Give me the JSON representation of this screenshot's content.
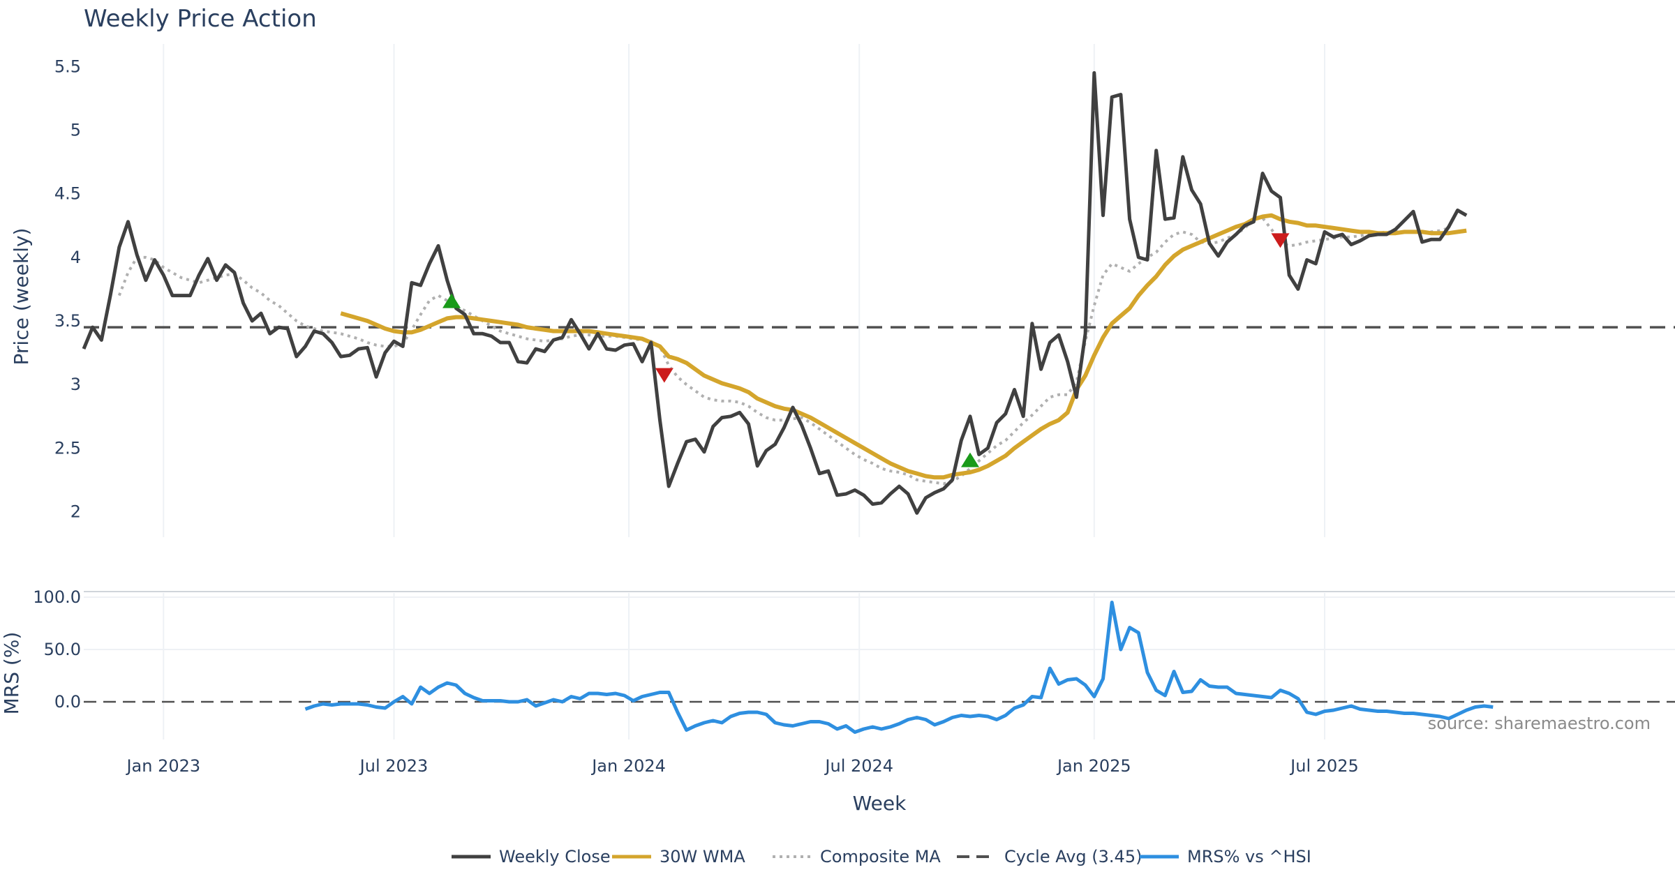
{
  "chart_data": {
    "type": "line",
    "title": "Weekly Price Action",
    "xlabel": "Week",
    "source": "source: sharemaestro.com",
    "x_ticks": [
      {
        "label": "Jan 2023",
        "week": 9
      },
      {
        "label": "Jul 2023",
        "week": 35
      },
      {
        "label": "Jan 2024",
        "week": 61.5
      },
      {
        "label": "Jul 2024",
        "week": 87.5
      },
      {
        "label": "Jan 2025",
        "week": 114
      },
      {
        "label": "Jul 2025",
        "week": 140
      }
    ],
    "price_panel": {
      "ylabel": "Price (weekly)",
      "ylim": [
        1.8,
        5.65
      ],
      "yticks": [
        2,
        2.5,
        3,
        3.5,
        4,
        4.5,
        5,
        5.5
      ],
      "ytick_labels": [
        "2",
        "2.5",
        "3",
        "3.5",
        "4",
        "4.5",
        "5",
        "5.5"
      ],
      "cycle_avg": 3.45,
      "series": [
        {
          "name": "Weekly Close",
          "color": "#404040",
          "start_week": 0,
          "values": [
            3.28,
            3.45,
            3.35,
            3.7,
            4.08,
            4.28,
            4.02,
            3.82,
            3.98,
            3.86,
            3.7,
            3.7,
            3.7,
            3.86,
            3.99,
            3.82,
            3.94,
            3.88,
            3.64,
            3.5,
            3.56,
            3.4,
            3.45,
            3.44,
            3.22,
            3.3,
            3.42,
            3.4,
            3.33,
            3.22,
            3.23,
            3.28,
            3.29,
            3.06,
            3.25,
            3.34,
            3.3,
            3.8,
            3.78,
            3.95,
            4.09,
            3.82,
            3.6,
            3.55,
            3.4,
            3.4,
            3.38,
            3.33,
            3.33,
            3.18,
            3.17,
            3.28,
            3.26,
            3.35,
            3.37,
            3.51,
            3.4,
            3.28,
            3.4,
            3.28,
            3.27,
            3.31,
            3.32,
            3.18,
            3.33,
            2.72,
            2.2,
            2.38,
            2.55,
            2.57,
            2.47,
            2.67,
            2.74,
            2.75,
            2.78,
            2.69,
            2.36,
            2.48,
            2.53,
            2.66,
            2.82,
            2.68,
            2.5,
            2.3,
            2.32,
            2.13,
            2.14,
            2.17,
            2.13,
            2.06,
            2.07,
            2.14,
            2.2,
            2.14,
            1.99,
            2.11,
            2.15,
            2.18,
            2.25,
            2.56,
            2.75,
            2.45,
            2.5,
            2.7,
            2.77,
            2.96,
            2.75,
            3.48,
            3.12,
            3.33,
            3.39,
            3.18,
            2.9,
            3.4,
            5.45,
            4.33,
            5.26,
            5.28,
            4.3,
            4.0,
            3.98,
            4.84,
            4.3,
            4.31,
            4.79,
            4.53,
            4.42,
            4.11,
            4.01,
            4.12,
            4.18,
            4.25,
            4.28,
            4.66,
            4.52,
            4.47,
            3.86,
            3.75,
            3.98,
            3.95,
            4.2,
            4.16,
            4.18,
            4.1,
            4.13,
            4.17,
            4.18,
            4.18,
            4.22,
            4.29,
            4.36,
            4.12,
            4.14,
            4.14,
            4.24,
            4.37,
            4.33
          ]
        },
        {
          "name": "30W WMA",
          "color": "#d4a52c",
          "start_week": 29,
          "values": [
            3.56,
            3.54,
            3.52,
            3.5,
            3.47,
            3.44,
            3.42,
            3.41,
            3.41,
            3.43,
            3.46,
            3.49,
            3.52,
            3.53,
            3.53,
            3.52,
            3.51,
            3.5,
            3.49,
            3.48,
            3.47,
            3.45,
            3.44,
            3.43,
            3.42,
            3.42,
            3.42,
            3.42,
            3.42,
            3.41,
            3.4,
            3.39,
            3.38,
            3.37,
            3.36,
            3.33,
            3.3,
            3.22,
            3.2,
            3.17,
            3.12,
            3.07,
            3.04,
            3.01,
            2.99,
            2.97,
            2.94,
            2.89,
            2.86,
            2.83,
            2.81,
            2.8,
            2.77,
            2.74,
            2.7,
            2.66,
            2.62,
            2.58,
            2.54,
            2.5,
            2.46,
            2.42,
            2.38,
            2.35,
            2.32,
            2.3,
            2.28,
            2.27,
            2.27,
            2.29,
            2.3,
            2.31,
            2.33,
            2.36,
            2.4,
            2.44,
            2.5,
            2.55,
            2.6,
            2.65,
            2.69,
            2.72,
            2.78,
            2.96,
            3.07,
            3.23,
            3.37,
            3.48,
            3.54,
            3.6,
            3.7,
            3.78,
            3.85,
            3.94,
            4.01,
            4.06,
            4.09,
            4.12,
            4.15,
            4.18,
            4.21,
            4.24,
            4.26,
            4.3,
            4.32,
            4.33,
            4.3,
            4.28,
            4.27,
            4.25,
            4.25,
            4.24,
            4.23,
            4.22,
            4.21,
            4.2,
            4.2,
            4.19,
            4.19,
            4.19,
            4.2,
            4.2,
            4.2,
            4.19,
            4.19,
            4.19,
            4.2,
            4.21
          ]
        },
        {
          "name": "Composite MA",
          "color": "#b0b0b0",
          "start_week": 4,
          "values": [
            3.7,
            3.88,
            4.0,
            4.0,
            3.98,
            3.92,
            3.88,
            3.84,
            3.82,
            3.8,
            3.82,
            3.84,
            3.86,
            3.87,
            3.82,
            3.76,
            3.72,
            3.66,
            3.62,
            3.56,
            3.5,
            3.46,
            3.44,
            3.42,
            3.41,
            3.4,
            3.38,
            3.36,
            3.33,
            3.31,
            3.3,
            3.3,
            3.32,
            3.43,
            3.55,
            3.66,
            3.7,
            3.66,
            3.62,
            3.58,
            3.54,
            3.5,
            3.46,
            3.42,
            3.4,
            3.38,
            3.36,
            3.35,
            3.34,
            3.35,
            3.36,
            3.38,
            3.39,
            3.39,
            3.38,
            3.38,
            3.38,
            3.37,
            3.36,
            3.35,
            3.34,
            3.3,
            3.15,
            3.06,
            3.0,
            2.95,
            2.9,
            2.88,
            2.87,
            2.87,
            2.86,
            2.83,
            2.78,
            2.74,
            2.72,
            2.72,
            2.73,
            2.74,
            2.7,
            2.65,
            2.6,
            2.55,
            2.5,
            2.45,
            2.41,
            2.38,
            2.34,
            2.32,
            2.31,
            2.29,
            2.25,
            2.24,
            2.23,
            2.22,
            2.24,
            2.28,
            2.34,
            2.4,
            2.46,
            2.52,
            2.56,
            2.63,
            2.7,
            2.76,
            2.83,
            2.9,
            2.92,
            2.92,
            3.02,
            3.34,
            3.62,
            3.86,
            3.95,
            3.92,
            3.89,
            3.95,
            4.0,
            4.04,
            4.12,
            4.18,
            4.2,
            4.18,
            4.12,
            4.11,
            4.12,
            4.15,
            4.18,
            4.23,
            4.3,
            4.31,
            4.22,
            4.12,
            4.09,
            4.1,
            4.12,
            4.13,
            4.14,
            4.15,
            4.16,
            4.16,
            4.17,
            4.18,
            4.19,
            4.2,
            4.2,
            4.2,
            4.2,
            4.2,
            4.2,
            4.21,
            4.23
          ]
        }
      ],
      "buy_signals": [
        {
          "week": 41.5,
          "price": 3.65
        },
        {
          "week": 100,
          "price": 2.4
        }
      ],
      "sell_signals": [
        {
          "week": 65.5,
          "price": 3.08
        },
        {
          "week": 135,
          "price": 4.14
        }
      ]
    },
    "mrs_panel": {
      "ylabel": "MRS (%)",
      "ylim": [
        -36,
        104
      ],
      "yticks": [
        0,
        50,
        100
      ],
      "ytick_labels": [
        "0.0",
        "50.0",
        "100.0"
      ],
      "series": {
        "name": "MRS% vs ^HSI",
        "color": "#2e8fe0",
        "start_week": 25,
        "values": [
          -7,
          -4,
          -2,
          -3,
          -2,
          -2,
          -2,
          -3,
          -5,
          -6,
          0,
          5,
          -2,
          14,
          8,
          14,
          18,
          16,
          8,
          4,
          1,
          1,
          1,
          0,
          0,
          2,
          -4,
          -1,
          2,
          0,
          5,
          3,
          8,
          8,
          7,
          8,
          6,
          1,
          5,
          7,
          9,
          9,
          -10,
          -27,
          -23,
          -20,
          -18,
          -20,
          -14,
          -11,
          -10,
          -10,
          -12,
          -20,
          -22,
          -23,
          -21,
          -19,
          -19,
          -21,
          -26,
          -23,
          -29,
          -26,
          -24,
          -26,
          -24,
          -21,
          -17,
          -15,
          -17,
          -22,
          -19,
          -15,
          -13,
          -14,
          -13,
          -14,
          -17,
          -13,
          -6,
          -3,
          5,
          4,
          32,
          17,
          21,
          22,
          16,
          5,
          22,
          95,
          50,
          71,
          66,
          28,
          11,
          6,
          29,
          9,
          10,
          21,
          15,
          14,
          14,
          8,
          7,
          6,
          5,
          4,
          11,
          8,
          3,
          -10,
          -12,
          -9,
          -8,
          -6,
          -4,
          -7,
          -8,
          -9,
          -9,
          -10,
          -11,
          -11,
          -12,
          -13,
          -14,
          -16,
          -12,
          -8,
          -5,
          -4,
          -5
        ]
      }
    },
    "legend": [
      {
        "label": "Weekly Close",
        "style": "solid",
        "color": "#404040"
      },
      {
        "label": "30W WMA",
        "style": "solid",
        "color": "#d4a52c"
      },
      {
        "label": "Composite MA",
        "style": "dotted",
        "color": "#b0b0b0"
      },
      {
        "label": "Cycle Avg (3.45)",
        "style": "dashed",
        "color": "#505050"
      },
      {
        "label": "MRS% vs ^HSI",
        "style": "solid",
        "color": "#2e8fe0"
      }
    ]
  }
}
